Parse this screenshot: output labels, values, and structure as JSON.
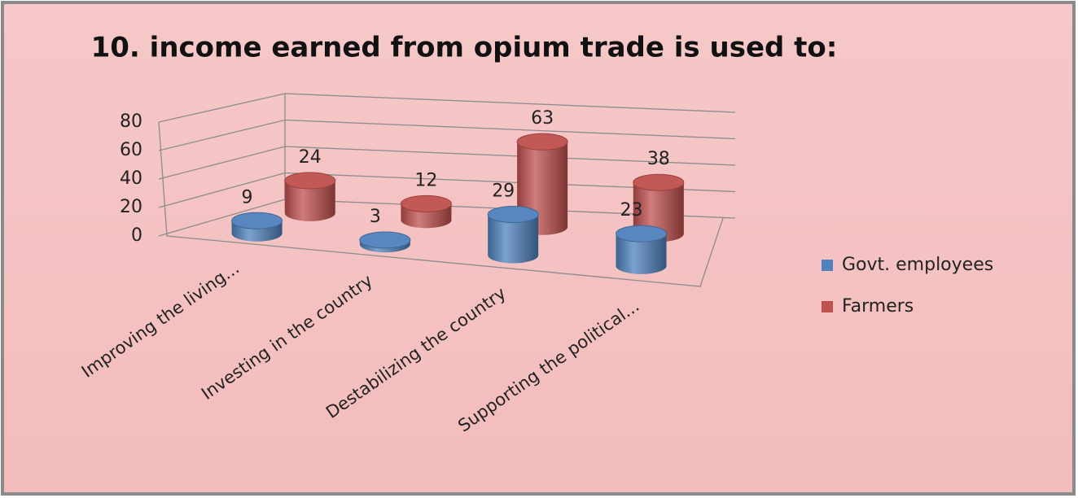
{
  "chart_data": {
    "type": "bar3d",
    "title": "10. income earned from opium trade is used to:",
    "categories": [
      "Improving the living...",
      "Investing in the country",
      "Destabilizing the country",
      "Supporting the political..."
    ],
    "series": [
      {
        "name": "Govt. employees",
        "color": "#4f81bd",
        "values": [
          9,
          3,
          29,
          23
        ]
      },
      {
        "name": "Farmers",
        "color": "#c0504d",
        "values": [
          24,
          12,
          63,
          38
        ]
      }
    ],
    "ylim": [
      0,
      80
    ],
    "yticks": [
      0,
      20,
      40,
      60,
      80
    ],
    "grid": true,
    "legend": "right"
  }
}
